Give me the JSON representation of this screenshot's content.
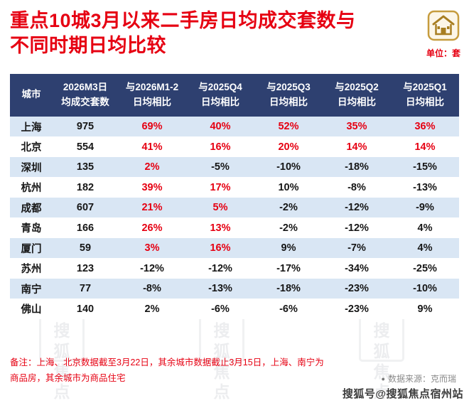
{
  "page": {
    "title_line1": "重点10城3月以来二手房日均成交套数与",
    "title_line2": "不同时期日均比较",
    "unit_label": "单位：套",
    "footnote_line1": "备注：上海、北京数据截至3月22日，其余城市数据截止3月15日，上海、南宁为",
    "footnote_line2": "商品房，其余城市为商品住宅",
    "source_bullet": "●",
    "source_text": "数据来源：克而瑞",
    "attribution": "搜狐号@搜狐焦点宿州站"
  },
  "colors": {
    "accent_red": "#e60012",
    "header_bg": "#2e4070",
    "row_alt_bg": "#d9e6f4",
    "icon_gold": "#b9912f",
    "source_gray": "#8a8a8a"
  },
  "watermark_seal": "搜狐焦点",
  "table": {
    "columns": [
      {
        "line1": "城市",
        "line2": ""
      },
      {
        "line1": "2026M3日",
        "line2": "均成交套数"
      },
      {
        "line1": "与2026M1-2",
        "line2": "日均相比"
      },
      {
        "line1": "与2025Q4",
        "line2": "日均相比"
      },
      {
        "line1": "与2025Q3",
        "line2": "日均相比"
      },
      {
        "line1": "与2025Q2",
        "line2": "日均相比"
      },
      {
        "line1": "与2025Q1",
        "line2": "日均相比"
      }
    ],
    "rows": [
      {
        "city": "上海",
        "value": "975",
        "pcts": [
          {
            "t": "69%",
            "red": true
          },
          {
            "t": "40%",
            "red": true
          },
          {
            "t": "52%",
            "red": true
          },
          {
            "t": "35%",
            "red": true
          },
          {
            "t": "36%",
            "red": true
          }
        ]
      },
      {
        "city": "北京",
        "value": "554",
        "pcts": [
          {
            "t": "41%",
            "red": true
          },
          {
            "t": "16%",
            "red": true
          },
          {
            "t": "20%",
            "red": true
          },
          {
            "t": "14%",
            "red": true
          },
          {
            "t": "14%",
            "red": true
          }
        ]
      },
      {
        "city": "深圳",
        "value": "135",
        "pcts": [
          {
            "t": "2%",
            "red": true
          },
          {
            "t": "-5%",
            "red": false
          },
          {
            "t": "-10%",
            "red": false
          },
          {
            "t": "-18%",
            "red": false
          },
          {
            "t": "-15%",
            "red": false
          }
        ]
      },
      {
        "city": "杭州",
        "value": "182",
        "pcts": [
          {
            "t": "39%",
            "red": true
          },
          {
            "t": "17%",
            "red": true
          },
          {
            "t": "10%",
            "red": false
          },
          {
            "t": "-8%",
            "red": false
          },
          {
            "t": "-13%",
            "red": false
          }
        ]
      },
      {
        "city": "成都",
        "value": "607",
        "pcts": [
          {
            "t": "21%",
            "red": true
          },
          {
            "t": "5%",
            "red": true
          },
          {
            "t": "-2%",
            "red": false
          },
          {
            "t": "-12%",
            "red": false
          },
          {
            "t": "-9%",
            "red": false
          }
        ]
      },
      {
        "city": "青岛",
        "value": "166",
        "pcts": [
          {
            "t": "26%",
            "red": true
          },
          {
            "t": "13%",
            "red": true
          },
          {
            "t": "-2%",
            "red": false
          },
          {
            "t": "-12%",
            "red": false
          },
          {
            "t": "4%",
            "red": false
          }
        ]
      },
      {
        "city": "厦门",
        "value": "59",
        "pcts": [
          {
            "t": "3%",
            "red": true
          },
          {
            "t": "16%",
            "red": true
          },
          {
            "t": "9%",
            "red": false
          },
          {
            "t": "-7%",
            "red": false
          },
          {
            "t": "4%",
            "red": false
          }
        ]
      },
      {
        "city": "苏州",
        "value": "123",
        "pcts": [
          {
            "t": "-12%",
            "red": false
          },
          {
            "t": "-12%",
            "red": false
          },
          {
            "t": "-17%",
            "red": false
          },
          {
            "t": "-34%",
            "red": false
          },
          {
            "t": "-25%",
            "red": false
          }
        ]
      },
      {
        "city": "南宁",
        "value": "77",
        "pcts": [
          {
            "t": "-8%",
            "red": false
          },
          {
            "t": "-13%",
            "red": false
          },
          {
            "t": "-18%",
            "red": false
          },
          {
            "t": "-23%",
            "red": false
          },
          {
            "t": "-10%",
            "red": false
          }
        ]
      },
      {
        "city": "佛山",
        "value": "140",
        "pcts": [
          {
            "t": "2%",
            "red": false
          },
          {
            "t": "-6%",
            "red": false
          },
          {
            "t": "-6%",
            "red": false
          },
          {
            "t": "-23%",
            "red": false
          },
          {
            "t": "9%",
            "red": false
          }
        ]
      }
    ]
  },
  "chart_data": {
    "type": "table",
    "title": "重点10城3月以来二手房日均成交套数与不同时期日均比较",
    "unit": "套",
    "columns": [
      "城市",
      "2026M3日均成交套数",
      "与2026M1-2日均相比",
      "与2025Q4日均相比",
      "与2025Q3日均相比",
      "与2025Q2日均相比",
      "与2025Q1日均相比"
    ],
    "rows": [
      [
        "上海",
        975,
        "69%",
        "40%",
        "52%",
        "35%",
        "36%"
      ],
      [
        "北京",
        554,
        "41%",
        "16%",
        "20%",
        "14%",
        "14%"
      ],
      [
        "深圳",
        135,
        "2%",
        "-5%",
        "-10%",
        "-18%",
        "-15%"
      ],
      [
        "杭州",
        182,
        "39%",
        "17%",
        "10%",
        "-8%",
        "-13%"
      ],
      [
        "成都",
        607,
        "21%",
        "5%",
        "-2%",
        "-12%",
        "-9%"
      ],
      [
        "青岛",
        166,
        "26%",
        "13%",
        "-2%",
        "-12%",
        "4%"
      ],
      [
        "厦门",
        59,
        "3%",
        "16%",
        "9%",
        "-7%",
        "4%"
      ],
      [
        "苏州",
        123,
        "-12%",
        "-12%",
        "-17%",
        "-34%",
        "-25%"
      ],
      [
        "南宁",
        77,
        "-8%",
        "-13%",
        "-18%",
        "-23%",
        "-10%"
      ],
      [
        "佛山",
        140,
        "2%",
        "-6%",
        "-6%",
        "-23%",
        "9%"
      ]
    ],
    "source": "克而瑞"
  }
}
